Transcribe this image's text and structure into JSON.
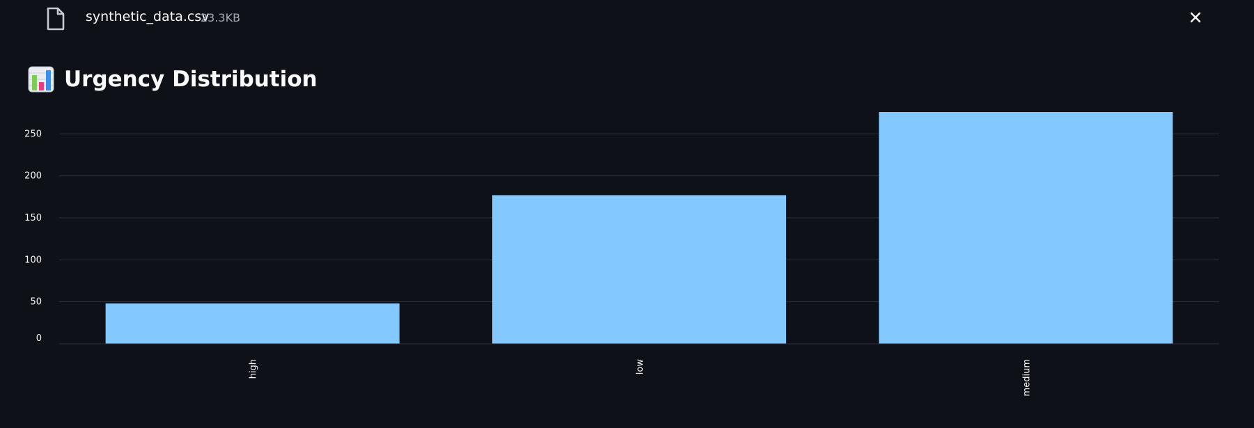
{
  "file": {
    "name": "synthetic_data.csv",
    "size": "23.3KB",
    "icon": "file-icon",
    "close_icon": "close-icon"
  },
  "header": {
    "icon": "bar-chart-emoji-icon",
    "title": "Urgency Distribution"
  },
  "colors": {
    "background": "#0e1117",
    "bar": "#83c9ff",
    "grid": "#31333f",
    "text": "#fafafa"
  },
  "chart_data": {
    "type": "bar",
    "title": "Urgency Distribution",
    "categories": [
      "high",
      "low",
      "medium"
    ],
    "values": [
      48,
      177,
      276
    ],
    "xlabel": "",
    "ylabel": "",
    "ylim": [
      0,
      276
    ],
    "yticks": [
      0,
      50,
      100,
      150,
      200,
      250
    ],
    "x_tick_rotation": "vertical",
    "grid": true,
    "legend": "none"
  }
}
